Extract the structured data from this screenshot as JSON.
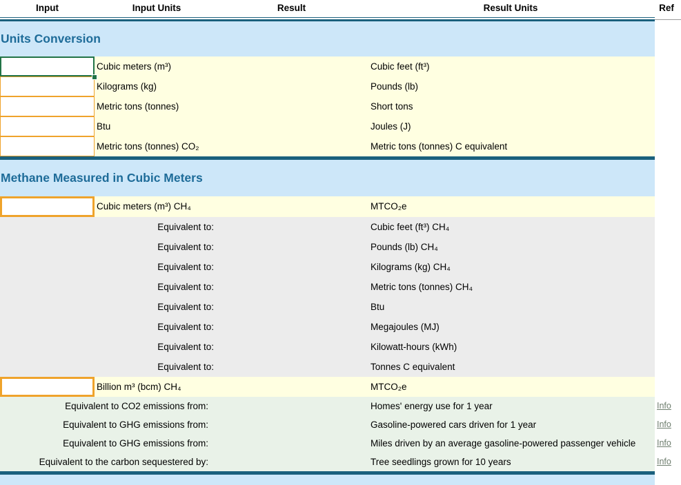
{
  "header": {
    "input": "Input",
    "input_units": "Input Units",
    "result": "Result",
    "result_units": "Result Units",
    "ref": "Ref"
  },
  "colors": {
    "separator_teal": "#1A607D",
    "band_blue": "#CDE7F9",
    "section_title_blue": "#1E6C99",
    "row_yellow": "#FFFFE1",
    "row_gray": "#ECECEC",
    "row_green": "#E9F2E8",
    "input_border_gold": "#EFA32B",
    "selected_cell_green": "#217346",
    "info_link": "#6E7E6E"
  },
  "sections": [
    {
      "title": "Units Conversion",
      "rows": [
        {
          "input_value": "",
          "input_units": "Cubic meters (m³)",
          "result_units": "Cubic feet (ft³)"
        },
        {
          "input_value": "",
          "input_units": "Kilograms (kg)",
          "result_units": "Pounds (lb)"
        },
        {
          "input_value": "",
          "input_units": "Metric tons (tonnes)",
          "result_units": "Short tons"
        },
        {
          "input_value": "",
          "input_units": "Btu",
          "result_units": "Joules (J)"
        },
        {
          "input_value": "",
          "input_units": "Metric tons (tonnes) CO₂",
          "result_units": "Metric tons (tonnes) C equivalent"
        }
      ]
    },
    {
      "title": "Methane Measured in Cubic Meters",
      "rows": [
        {
          "input_value": "",
          "input_units": "Cubic meters (m³) CH₄",
          "result_units": "MTCO₂e"
        },
        {
          "label": "Equivalent to:",
          "result_units": "Cubic feet (ft³) CH₄"
        },
        {
          "label": "Equivalent to:",
          "result_units": "Pounds (lb) CH₄"
        },
        {
          "label": "Equivalent to:",
          "result_units": "Kilograms (kg) CH₄"
        },
        {
          "label": "Equivalent to:",
          "result_units": "Metric tons (tonnes) CH₄"
        },
        {
          "label": "Equivalent to:",
          "result_units": "Btu"
        },
        {
          "label": "Equivalent to:",
          "result_units": "Megajoules (MJ)"
        },
        {
          "label": "Equivalent to:",
          "result_units": "Kilowatt-hours (kWh)"
        },
        {
          "label": "Equivalent to:",
          "result_units": "Tonnes C equivalent"
        },
        {
          "input_value": "",
          "input_units": "Billion m³ (bcm) CH₄",
          "result_units": "MTCO₂e"
        },
        {
          "label": "Equivalent to CO2 emissions from:",
          "result_units": "Homes' energy use for 1 year",
          "ref": "Info"
        },
        {
          "label": "Equivalent to GHG emissions from:",
          "result_units": "Gasoline-powered cars driven for 1 year",
          "ref": "Info"
        },
        {
          "label": "Equivalent to GHG emissions from:",
          "result_units": "Miles driven by an average gasoline-powered passenger vehicle",
          "ref": "Info"
        },
        {
          "label": "Equivalent to the carbon sequestered by:",
          "result_units": "Tree seedlings grown for 10 years",
          "ref": "Info"
        }
      ]
    }
  ]
}
